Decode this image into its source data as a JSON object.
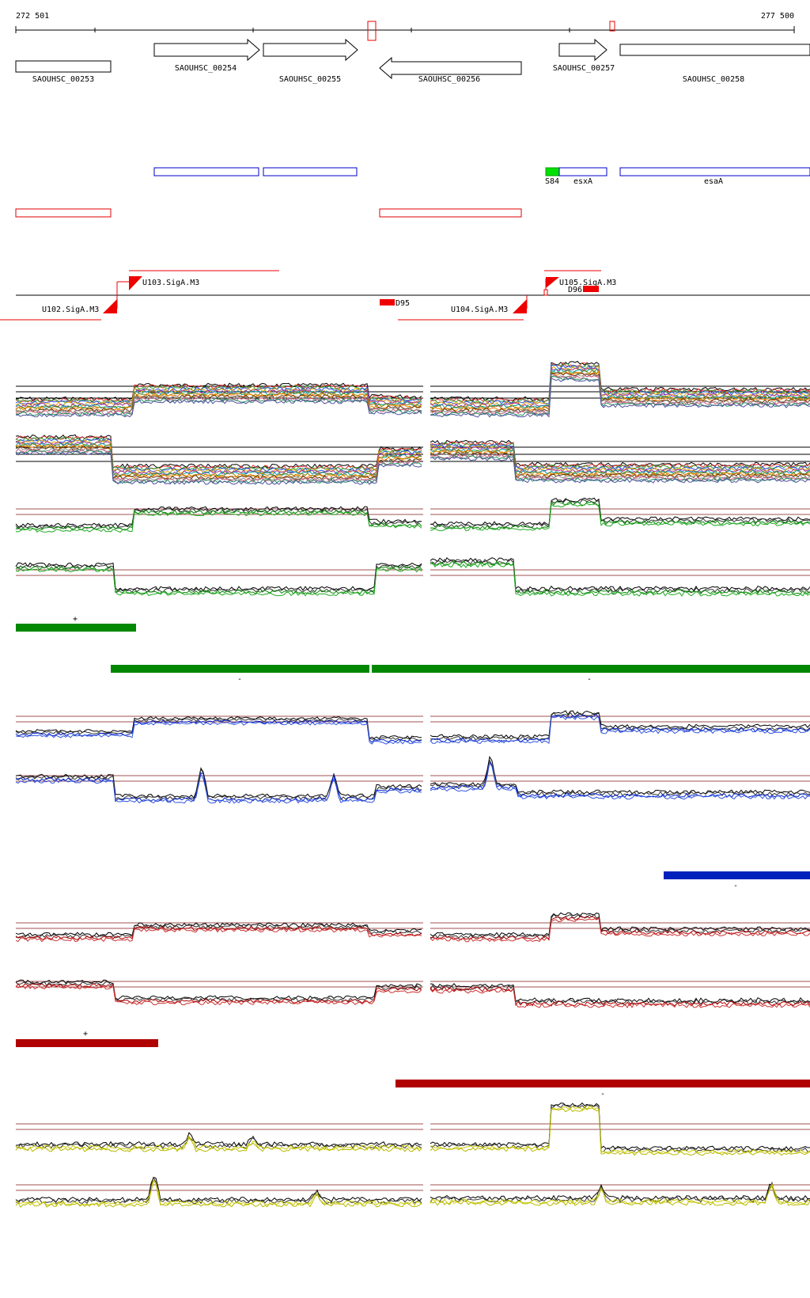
{
  "coords": {
    "start": "272 501",
    "end": "277 500"
  },
  "genes": [
    {
      "name": "SAOUHSC_00253"
    },
    {
      "name": "SAOUHSC_00254"
    },
    {
      "name": "SAOUHSC_00255"
    },
    {
      "name": "SAOUHSC_00256"
    },
    {
      "name": "SAOUHSC_00257"
    },
    {
      "name": "SAOUHSC_00258"
    }
  ],
  "blue_features": [
    {
      "name": "S84",
      "color": "#00e000"
    },
    {
      "name": "esxA",
      "color": "#0000cc"
    },
    {
      "name": "esaA",
      "color": "#0000cc"
    }
  ],
  "promoters": [
    {
      "name": "U102.SigA.M3"
    },
    {
      "name": "U103.SigA.M3"
    },
    {
      "name": "U104.SigA.M3"
    },
    {
      "name": "U105.SigA.M3"
    }
  ],
  "terminators": [
    {
      "name": "D95"
    },
    {
      "name": "D96"
    }
  ],
  "segment_strands": {
    "green_plus": "+",
    "green_minus_a": "-",
    "green_minus_b": "-",
    "blue_minus": "-",
    "red_plus": "+",
    "red_minus": "-"
  },
  "colors": {
    "green": "#008800",
    "blue": "#0022bb",
    "red": "#b00000",
    "yellow": "#cccc00",
    "gene": "#000000",
    "promoter": "#ee0000"
  }
}
